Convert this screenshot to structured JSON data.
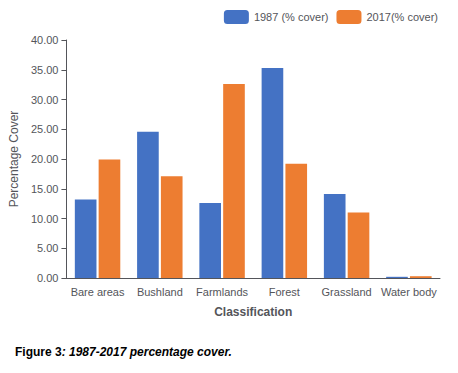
{
  "chart_data": {
    "type": "bar",
    "categories": [
      "Bare areas",
      "Bushland",
      "Farmlands",
      "Forest",
      "Grassland",
      "Water body"
    ],
    "series": [
      {
        "name": "1987 (% cover)",
        "color": "#4472C4",
        "values": [
          13.2,
          24.6,
          12.6,
          35.3,
          14.1,
          0.2
        ]
      },
      {
        "name": "2017(% cover)",
        "color": "#ED7D31",
        "values": [
          19.9,
          17.1,
          32.6,
          19.2,
          11.0,
          0.3
        ]
      }
    ],
    "xlabel": "Classification",
    "ylabel": "Percentage Cover",
    "ylim": [
      0,
      40
    ],
    "yticks": [
      {
        "value": 0,
        "label": "0.00"
      },
      {
        "value": 5,
        "label": "5.00"
      },
      {
        "value": 10,
        "label": "10.00"
      },
      {
        "value": 15,
        "label": "15.00"
      },
      {
        "value": 20,
        "label": "20.00"
      },
      {
        "value": 25,
        "label": "25.00"
      },
      {
        "value": 30,
        "label": "30.00"
      },
      {
        "value": 35,
        "label": "35.00"
      },
      {
        "value": 40,
        "label": "40.00"
      }
    ],
    "annotations": [
      "Figure 3",
      ": 1987-2017 percentage cover."
    ],
    "legend": "upper right",
    "grid": false
  }
}
